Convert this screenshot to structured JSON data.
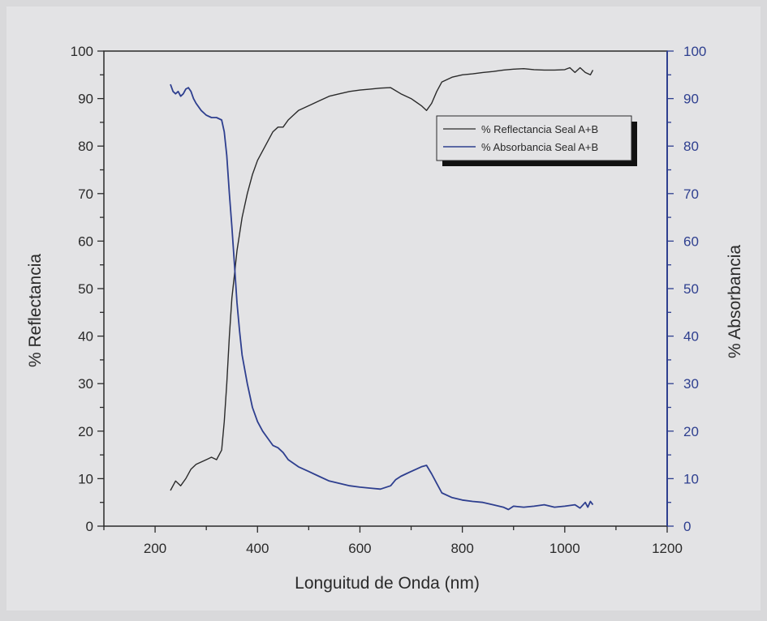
{
  "chart_data": {
    "type": "line",
    "xlabel": "Longuitud de Onda (nm)",
    "ylabel": "% Reflectancia",
    "y2label": "% Absorbancia",
    "xlim": [
      100,
      1200
    ],
    "ylim": [
      0,
      100
    ],
    "y2lim": [
      0,
      100
    ],
    "xticks": [
      200,
      400,
      600,
      800,
      1000,
      1200
    ],
    "yticks": [
      0,
      10,
      20,
      30,
      40,
      50,
      60,
      70,
      80,
      90,
      100
    ],
    "y2ticks": [
      0,
      10,
      20,
      30,
      40,
      50,
      60,
      70,
      80,
      90,
      100
    ],
    "grid": false,
    "legend_position": "top-right",
    "colors": {
      "reflectancia": "#2a2a2a",
      "absorbancia": "#2e3f8f",
      "right_axis": "#2e3f8f"
    },
    "series": [
      {
        "name": "% Reflectancia Seal A+B",
        "axis": "left",
        "x": [
          230,
          240,
          250,
          260,
          270,
          280,
          290,
          300,
          310,
          320,
          330,
          335,
          340,
          345,
          350,
          355,
          360,
          370,
          380,
          390,
          400,
          410,
          420,
          430,
          440,
          450,
          460,
          470,
          480,
          500,
          520,
          540,
          560,
          580,
          600,
          620,
          640,
          660,
          680,
          700,
          720,
          730,
          740,
          750,
          760,
          780,
          800,
          820,
          840,
          860,
          880,
          900,
          920,
          940,
          960,
          980,
          1000,
          1010,
          1020,
          1030,
          1040,
          1050,
          1055
        ],
        "y": [
          7.5,
          9.5,
          8.5,
          10,
          12,
          13,
          13.5,
          14,
          14.5,
          14,
          16,
          22,
          30,
          40,
          48,
          53,
          58,
          65,
          70,
          74,
          77,
          79,
          81,
          83,
          84,
          84,
          85.5,
          86.5,
          87.5,
          88.5,
          89.5,
          90.5,
          91,
          91.5,
          91.8,
          92,
          92.2,
          92.3,
          91,
          90,
          88.5,
          87.5,
          89,
          91.5,
          93.5,
          94.5,
          95,
          95.2,
          95.5,
          95.7,
          96,
          96.2,
          96.3,
          96.1,
          96,
          96,
          96.1,
          96.5,
          95.5,
          96.5,
          95.5,
          95,
          96
        ]
      },
      {
        "name": "% Absorbancia Seal A+B",
        "axis": "right",
        "x": [
          230,
          235,
          240,
          245,
          250,
          255,
          260,
          265,
          270,
          275,
          280,
          290,
          300,
          310,
          320,
          330,
          335,
          340,
          345,
          350,
          355,
          360,
          365,
          370,
          380,
          390,
          400,
          410,
          420,
          430,
          440,
          450,
          460,
          480,
          500,
          520,
          540,
          560,
          580,
          600,
          620,
          640,
          660,
          670,
          680,
          690,
          700,
          710,
          720,
          730,
          740,
          750,
          760,
          780,
          800,
          820,
          840,
          860,
          880,
          890,
          900,
          920,
          940,
          960,
          980,
          1000,
          1020,
          1030,
          1040,
          1045,
          1050,
          1055
        ],
        "y": [
          93,
          91.5,
          91,
          91.5,
          90.5,
          91,
          92,
          92.3,
          91.5,
          90,
          89,
          87.5,
          86.5,
          86,
          86,
          85.5,
          83,
          78,
          70,
          63,
          55,
          47,
          41,
          36,
          30,
          25,
          22,
          20,
          18.5,
          17,
          16.5,
          15.5,
          14,
          12.5,
          11.5,
          10.5,
          9.5,
          9,
          8.5,
          8.2,
          8,
          7.8,
          8.5,
          9.8,
          10.5,
          11,
          11.5,
          12,
          12.5,
          12.8,
          11,
          9,
          7,
          6,
          5.5,
          5.2,
          5,
          4.5,
          4,
          3.5,
          4.2,
          4,
          4.2,
          4.5,
          4,
          4.2,
          4.5,
          3.8,
          5,
          4,
          5.2,
          4.5
        ]
      }
    ]
  }
}
